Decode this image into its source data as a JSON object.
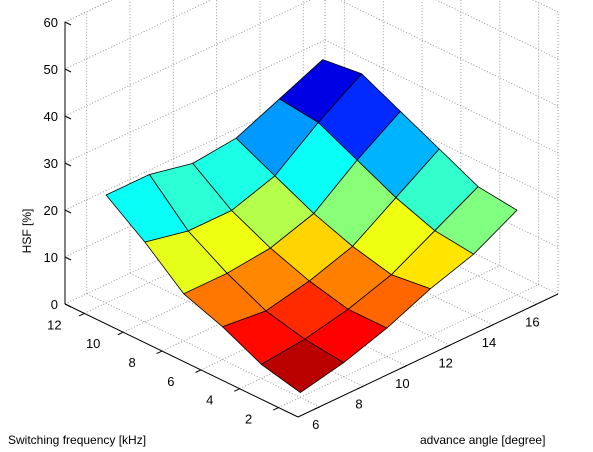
{
  "chart_data": {
    "type": "surface3d",
    "title": "",
    "xlabel": "advance angle [degree]",
    "ylabel": "Switching frequency [kHz]",
    "zlabel": "HSF [%]",
    "x": [
      6,
      8,
      10,
      12,
      14,
      16
    ],
    "y": [
      2,
      4,
      6,
      8,
      10,
      12
    ],
    "z": [
      [
        1,
        3,
        6,
        10,
        13,
        18
      ],
      [
        3,
        4,
        6,
        9,
        14,
        19
      ],
      [
        7,
        6,
        8,
        11,
        17,
        23
      ],
      [
        10,
        10,
        11,
        14,
        21,
        27
      ],
      [
        17,
        15,
        15,
        18,
        25,
        31
      ],
      [
        23,
        23,
        21,
        22,
        26,
        30
      ]
    ],
    "x_ticks": [
      6,
      8,
      10,
      12,
      14,
      16
    ],
    "y_ticks": [
      2,
      4,
      6,
      8,
      10,
      12
    ],
    "z_ticks": [
      0,
      10,
      20,
      30,
      40,
      50,
      60
    ],
    "xlim": [
      5,
      17
    ],
    "ylim": [
      1,
      13
    ],
    "zlim": [
      0,
      60
    ],
    "grid": true,
    "colormap": "jet",
    "colors": {
      "edge": "#000000",
      "grid": "#999999",
      "box": "#000000"
    }
  }
}
